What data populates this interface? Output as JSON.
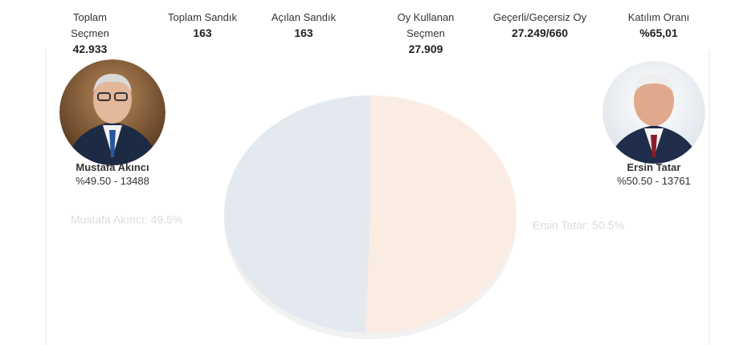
{
  "stats": [
    {
      "label": "Toplam Seçmen",
      "value": "42.933"
    },
    {
      "label": "Toplam Sandık",
      "value": "163"
    },
    {
      "label": "Açılan Sandık",
      "value": "163"
    },
    {
      "label": "Oy Kullanan Seçmen",
      "value": "27.909"
    },
    {
      "label": "Geçerli/Geçersiz Oy",
      "value": "27.249/660"
    },
    {
      "label": "Katılım Oranı",
      "value": "%65,01"
    }
  ],
  "candidates": [
    {
      "name": "Mustafa Akıncı",
      "result": "%49.50 - 13488"
    },
    {
      "name": "Ersin Tatar",
      "result": "%50.50 - 13761"
    }
  ],
  "chart_data": {
    "type": "pie",
    "categories": [
      "Mustafa Akıncı",
      "Ersin Tatar"
    ],
    "values": [
      49.5,
      50.5
    ],
    "value_labels": [
      "Mustafa Akıncı: 49.5%",
      "Ersin Tatar: 50.5%"
    ],
    "colors": [
      "#e4e9f0",
      "#fbece3"
    ]
  }
}
